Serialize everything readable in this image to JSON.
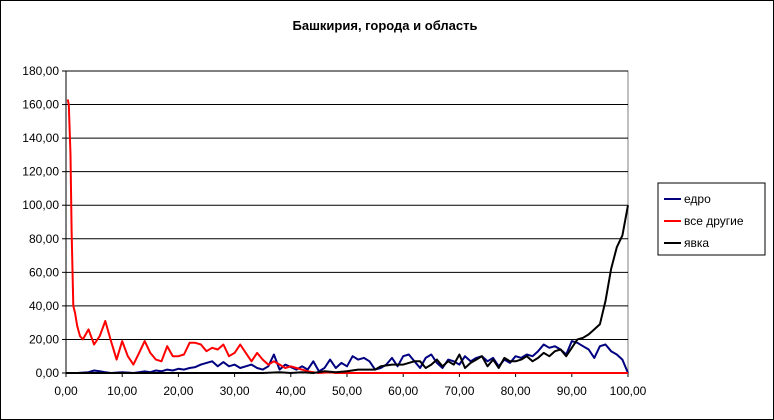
{
  "chart_data": {
    "type": "line",
    "title": "Башкирия, города и область",
    "xlabel": "",
    "ylabel": "",
    "xlim": [
      0,
      100
    ],
    "ylim": [
      0,
      180
    ],
    "x_ticks": [
      "0,00",
      "10,00",
      "20,00",
      "30,00",
      "40,00",
      "50,00",
      "60,00",
      "70,00",
      "80,00",
      "90,00",
      "100,00"
    ],
    "y_ticks": [
      "0,00",
      "20,00",
      "40,00",
      "60,00",
      "80,00",
      "100,00",
      "120,00",
      "140,00",
      "160,00",
      "180,00"
    ],
    "grid": "horizontal",
    "legend_position": "right",
    "series": [
      {
        "name": "едро",
        "color": "#000080",
        "points": [
          [
            0,
            0
          ],
          [
            2,
            0
          ],
          [
            4,
            0.5
          ],
          [
            5,
            1.5
          ],
          [
            6,
            1
          ],
          [
            7,
            0.5
          ],
          [
            8,
            0
          ],
          [
            10,
            0.5
          ],
          [
            12,
            0
          ],
          [
            13,
            0.5
          ],
          [
            14,
            1
          ],
          [
            15,
            0.5
          ],
          [
            16,
            1.5
          ],
          [
            17,
            1
          ],
          [
            18,
            2
          ],
          [
            19,
            1.5
          ],
          [
            20,
            2.5
          ],
          [
            21,
            2
          ],
          [
            22,
            3
          ],
          [
            23,
            3.5
          ],
          [
            24,
            5
          ],
          [
            25,
            6
          ],
          [
            26,
            7
          ],
          [
            27,
            4
          ],
          [
            28,
            6.5
          ],
          [
            29,
            4
          ],
          [
            30,
            5
          ],
          [
            31,
            3
          ],
          [
            32,
            4
          ],
          [
            33,
            5
          ],
          [
            34,
            3
          ],
          [
            35,
            2
          ],
          [
            36,
            4
          ],
          [
            37,
            11
          ],
          [
            38,
            2
          ],
          [
            39,
            5
          ],
          [
            40,
            3.5
          ],
          [
            41,
            2
          ],
          [
            42,
            4
          ],
          [
            43,
            2
          ],
          [
            44,
            7
          ],
          [
            45,
            1
          ],
          [
            46,
            3
          ],
          [
            47,
            8
          ],
          [
            48,
            3
          ],
          [
            49,
            6
          ],
          [
            50,
            4
          ],
          [
            51,
            10
          ],
          [
            52,
            8
          ],
          [
            53,
            9
          ],
          [
            54,
            7
          ],
          [
            55,
            2
          ],
          [
            56,
            3
          ],
          [
            57,
            5
          ],
          [
            58,
            9
          ],
          [
            59,
            4
          ],
          [
            60,
            10
          ],
          [
            61,
            11
          ],
          [
            62,
            7
          ],
          [
            63,
            3
          ],
          [
            64,
            9
          ],
          [
            65,
            11
          ],
          [
            66,
            6
          ],
          [
            67,
            3
          ],
          [
            68,
            8
          ],
          [
            69,
            7
          ],
          [
            70,
            5
          ],
          [
            71,
            10
          ],
          [
            72,
            7
          ],
          [
            73,
            9
          ],
          [
            74,
            10
          ],
          [
            75,
            7
          ],
          [
            76,
            9
          ],
          [
            77,
            4
          ],
          [
            78,
            8
          ],
          [
            79,
            6
          ],
          [
            80,
            10
          ],
          [
            81,
            9
          ],
          [
            82,
            11
          ],
          [
            83,
            10
          ],
          [
            84,
            13
          ],
          [
            85,
            17
          ],
          [
            86,
            15
          ],
          [
            87,
            16
          ],
          [
            88,
            14
          ],
          [
            89,
            11
          ],
          [
            90,
            19
          ],
          [
            91,
            18
          ],
          [
            92,
            16
          ],
          [
            93,
            14
          ],
          [
            94,
            9
          ],
          [
            95,
            16
          ],
          [
            96,
            17
          ],
          [
            97,
            13
          ],
          [
            98,
            11
          ],
          [
            99,
            8
          ],
          [
            100,
            0
          ]
        ]
      },
      {
        "name": "все другие",
        "color": "#ff0000",
        "points": [
          [
            0.3,
            163
          ],
          [
            0.5,
            160
          ],
          [
            0.8,
            130
          ],
          [
            1,
            85
          ],
          [
            1.3,
            40
          ],
          [
            1.6,
            36
          ],
          [
            2,
            28
          ],
          [
            2.5,
            22
          ],
          [
            3,
            20
          ],
          [
            4,
            26
          ],
          [
            5,
            17
          ],
          [
            6,
            22
          ],
          [
            7,
            31
          ],
          [
            8,
            19
          ],
          [
            9,
            8
          ],
          [
            10,
            19
          ],
          [
            11,
            10
          ],
          [
            12,
            5
          ],
          [
            13,
            12
          ],
          [
            14,
            19
          ],
          [
            15,
            12
          ],
          [
            16,
            8
          ],
          [
            17,
            7
          ],
          [
            18,
            16
          ],
          [
            19,
            10
          ],
          [
            20,
            10
          ],
          [
            21,
            11
          ],
          [
            22,
            18
          ],
          [
            23,
            18
          ],
          [
            24,
            17
          ],
          [
            25,
            13
          ],
          [
            26,
            15
          ],
          [
            27,
            14
          ],
          [
            28,
            17
          ],
          [
            29,
            10
          ],
          [
            30,
            12
          ],
          [
            31,
            17
          ],
          [
            32,
            12
          ],
          [
            33,
            7
          ],
          [
            34,
            12
          ],
          [
            35,
            8
          ],
          [
            36,
            5
          ],
          [
            37,
            7
          ],
          [
            38,
            5
          ],
          [
            39,
            3
          ],
          [
            40,
            4
          ],
          [
            41,
            3
          ],
          [
            42,
            2
          ],
          [
            43,
            1
          ],
          [
            44,
            0.5
          ],
          [
            45,
            0
          ],
          [
            47,
            0.5
          ],
          [
            48,
            0
          ],
          [
            50,
            0
          ],
          [
            55,
            0
          ],
          [
            60,
            0
          ],
          [
            70,
            0
          ],
          [
            80,
            0
          ],
          [
            90,
            0
          ],
          [
            100,
            0
          ]
        ]
      },
      {
        "name": "явка",
        "color": "#000000",
        "points": [
          [
            0,
            0
          ],
          [
            10,
            0
          ],
          [
            20,
            0
          ],
          [
            30,
            0
          ],
          [
            35,
            0
          ],
          [
            38,
            0.5
          ],
          [
            40,
            0
          ],
          [
            42,
            0.5
          ],
          [
            44,
            0
          ],
          [
            46,
            1
          ],
          [
            48,
            0.5
          ],
          [
            50,
            1
          ],
          [
            52,
            2
          ],
          [
            54,
            2
          ],
          [
            55,
            2
          ],
          [
            56,
            4
          ],
          [
            58,
            5
          ],
          [
            60,
            5
          ],
          [
            62,
            7
          ],
          [
            63,
            7
          ],
          [
            64,
            3
          ],
          [
            65,
            5
          ],
          [
            66,
            8
          ],
          [
            67,
            4
          ],
          [
            68,
            7
          ],
          [
            69,
            5
          ],
          [
            70,
            11
          ],
          [
            71,
            3
          ],
          [
            72,
            6
          ],
          [
            73,
            8
          ],
          [
            74,
            10
          ],
          [
            75,
            4
          ],
          [
            76,
            8
          ],
          [
            77,
            3
          ],
          [
            78,
            9
          ],
          [
            79,
            7
          ],
          [
            80,
            7
          ],
          [
            81,
            8
          ],
          [
            82,
            10
          ],
          [
            83,
            7
          ],
          [
            84,
            9
          ],
          [
            85,
            12
          ],
          [
            86,
            10
          ],
          [
            87,
            13
          ],
          [
            88,
            14
          ],
          [
            89,
            10
          ],
          [
            90,
            15
          ],
          [
            91,
            20
          ],
          [
            92,
            21
          ],
          [
            93,
            23
          ],
          [
            94,
            26
          ],
          [
            95,
            29
          ],
          [
            96,
            43
          ],
          [
            97,
            62
          ],
          [
            98,
            75
          ],
          [
            99,
            82
          ],
          [
            100,
            100
          ]
        ]
      }
    ]
  }
}
